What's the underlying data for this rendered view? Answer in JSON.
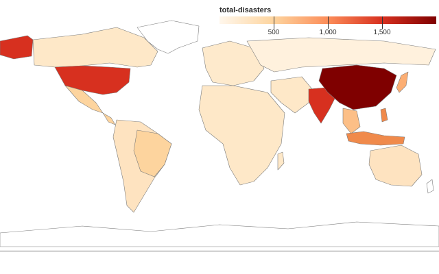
{
  "legend": {
    "title": "total-disasters",
    "ticks": [
      {
        "value": 500,
        "label": "500"
      },
      {
        "value": 1000,
        "label": "1,000"
      },
      {
        "value": 1500,
        "label": "1,500"
      }
    ],
    "scale_min": 0,
    "scale_max": 2000,
    "colors": [
      "#fff7ec",
      "#fdd49e",
      "#fc8d59",
      "#d7301f",
      "#7f0000"
    ]
  },
  "regions": {
    "china": {
      "level": 2000,
      "color": "#7f0000"
    },
    "usa": {
      "level": 1450,
      "color": "#d7301f"
    },
    "india": {
      "level": 1350,
      "color": "#d7301f"
    },
    "alaska": {
      "level": 1450,
      "color": "#d7301f"
    },
    "indonesia": {
      "level": 950,
      "color": "#f08a4b"
    },
    "philippines": {
      "level": 950,
      "color": "#f08a4b"
    },
    "japan": {
      "level": 650,
      "color": "#fcae73"
    },
    "southeast_asia": {
      "level": 600,
      "color": "#fcbf87"
    },
    "brazil": {
      "level": 380,
      "color": "#fdd49e"
    },
    "canada": {
      "level": 200,
      "color": "#fee8c8"
    },
    "mexico": {
      "level": 380,
      "color": "#fdd49e"
    },
    "australia": {
      "level": 300,
      "color": "#fee3c0"
    },
    "russia": {
      "level": 180,
      "color": "#fff1dd"
    },
    "europe": {
      "level": 180,
      "color": "#feeacc"
    },
    "africa": {
      "level": 200,
      "color": "#fee8c8"
    },
    "south_america": {
      "level": 250,
      "color": "#fee3c0"
    },
    "middle_east": {
      "level": 200,
      "color": "#fee8c8"
    }
  }
}
